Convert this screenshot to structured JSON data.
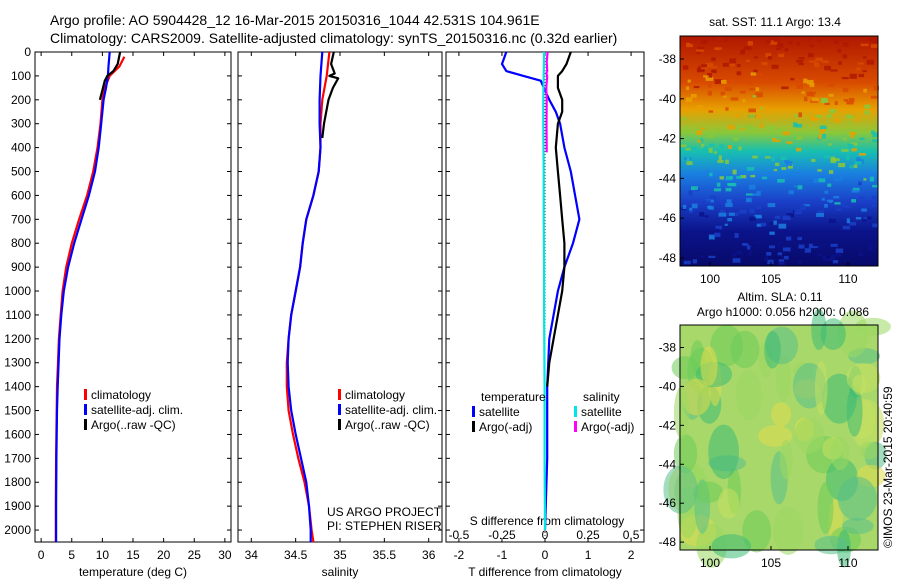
{
  "header": {
    "line1": "Argo profile: AO 5904428_12 16-Mar-2015 20150316_1044 42.531S 104.961E",
    "line2": "Climatology: CARS2009. Satellite-adjusted climatology: synTS_20150316.nc (0.32d earlier)"
  },
  "colors": {
    "climatology": "#ff0000",
    "satellite": "#0000ff",
    "argo": "#000000",
    "cyan": "#00e5e5",
    "magenta": "#ff00ff"
  },
  "chart_data": [
    {
      "type": "line",
      "xlabel": "temperature (deg C)",
      "xlim": [
        -1,
        31
      ],
      "xticks": [
        0,
        5,
        10,
        15,
        20,
        25,
        30
      ],
      "ylim": [
        0,
        2050
      ],
      "yticks": [
        0,
        100,
        200,
        300,
        400,
        500,
        600,
        700,
        800,
        900,
        1000,
        1100,
        1200,
        1300,
        1400,
        1500,
        1600,
        1700,
        1800,
        1900,
        2000
      ],
      "legend": [
        "climatology",
        "satellite-adj. clim.",
        "Argo(..raw -QC)"
      ],
      "series": [
        {
          "name": "climatology",
          "color": "#ff0000",
          "x": [
            13.6,
            12.8,
            11.2,
            10.4,
            10.0,
            9.7,
            9.2,
            8.5,
            7.5,
            6.2,
            5.0,
            4.1,
            3.5,
            3.2,
            2.9,
            2.75,
            2.6,
            2.55,
            2.5,
            2.45,
            2.4,
            2.4
          ],
          "y": [
            20,
            60,
            100,
            150,
            200,
            300,
            400,
            500,
            600,
            700,
            800,
            900,
            1000,
            1100,
            1200,
            1300,
            1400,
            1500,
            1600,
            1700,
            1900,
            2050
          ]
        },
        {
          "name": "satellite-adj. clim.",
          "color": "#0000ff",
          "x": [
            11.2,
            11.0,
            10.9,
            10.6,
            10.2,
            9.8,
            9.4,
            8.8,
            7.8,
            6.6,
            5.4,
            4.4,
            3.7,
            3.3,
            3.0,
            2.85,
            2.7,
            2.6,
            2.55,
            2.5,
            2.45,
            2.45
          ],
          "y": [
            0,
            60,
            100,
            150,
            200,
            300,
            400,
            500,
            600,
            700,
            800,
            900,
            1000,
            1100,
            1200,
            1300,
            1400,
            1500,
            1600,
            1700,
            1900,
            2050
          ]
        },
        {
          "name": "Argo(..raw -QC)",
          "color": "#000000",
          "x": [
            12.9,
            12.5,
            11.8,
            10.8,
            10.4,
            10.0,
            9.6
          ],
          "y": [
            0,
            50,
            80,
            100,
            120,
            160,
            200
          ]
        }
      ]
    },
    {
      "type": "line",
      "xlabel": "salinity",
      "xlim": [
        33.85,
        36.15
      ],
      "xticks": [
        34,
        34.5,
        35,
        35.5,
        36
      ],
      "ylim": [
        0,
        2050
      ],
      "legend": [
        "climatology",
        "satellite-adj. clim.",
        "Argo(..raw -QC)"
      ],
      "annotation": [
        "US ARGO PROJECT",
        "PI: STEPHEN RISER"
      ],
      "series": [
        {
          "name": "climatology",
          "color": "#ff0000",
          "x": [
            34.88,
            34.85,
            34.8,
            34.78,
            34.78,
            34.76,
            34.7,
            34.62,
            34.58,
            34.55,
            34.5,
            34.45,
            34.42,
            34.4,
            34.4,
            34.42,
            34.47,
            34.53,
            34.6,
            34.65,
            34.68,
            34.7
          ],
          "y": [
            0,
            100,
            200,
            300,
            400,
            500,
            600,
            700,
            800,
            900,
            1000,
            1100,
            1200,
            1300,
            1400,
            1500,
            1600,
            1700,
            1800,
            1900,
            2000,
            2050
          ]
        },
        {
          "name": "satellite-adj. clim.",
          "color": "#0000ff",
          "x": [
            34.8,
            34.78,
            34.77,
            34.77,
            34.78,
            34.76,
            34.7,
            34.62,
            34.58,
            34.55,
            34.5,
            34.45,
            34.42,
            34.41,
            34.42,
            34.45,
            34.5,
            34.56,
            34.62,
            34.65,
            34.67,
            34.67
          ],
          "y": [
            0,
            100,
            200,
            300,
            400,
            500,
            600,
            700,
            800,
            900,
            1000,
            1100,
            1200,
            1300,
            1400,
            1500,
            1600,
            1700,
            1800,
            1900,
            2000,
            2050
          ]
        },
        {
          "name": "Argo(..raw -QC)",
          "color": "#000000",
          "x": [
            34.93,
            34.9,
            34.94,
            34.88,
            34.98,
            34.92,
            34.87,
            34.84,
            34.82,
            34.8
          ],
          "y": [
            0,
            50,
            90,
            100,
            110,
            150,
            200,
            260,
            300,
            360
          ]
        }
      ]
    },
    {
      "type": "line",
      "xlabel": "T difference from climatology",
      "xlabel_top": "S difference from climatology",
      "xlim": [
        -2.3,
        2.3
      ],
      "xticks": [
        -2,
        -1,
        0,
        1,
        2
      ],
      "xticks_top": [
        -0.5,
        -0.25,
        0,
        0.25,
        0.5
      ],
      "ylim": [
        0,
        2050
      ],
      "legend_headers": [
        "temperature",
        "salinity"
      ],
      "legend": [
        "satellite",
        "Argo(-adj)",
        "satellite",
        "Argo(-adj)"
      ],
      "series": [
        {
          "name": "temperature satellite",
          "color": "#0000ff",
          "x": [
            -0.9,
            -1.0,
            -0.9,
            -0.5,
            -0.1,
            0.1,
            0.25,
            0.35,
            0.45,
            0.6,
            0.7,
            0.8,
            0.65,
            0.45,
            0.3,
            0.2,
            0.1,
            0.05,
            0.05,
            0.0
          ],
          "y": [
            0,
            50,
            80,
            100,
            120,
            200,
            250,
            300,
            400,
            500,
            600,
            700,
            800,
            900,
            1000,
            1100,
            1200,
            1400,
            1700,
            2000
          ]
        },
        {
          "name": "temperature Argo(-adj)",
          "color": "#000000",
          "x": [
            0.6,
            0.5,
            0.4,
            0.3,
            0.3,
            0.4,
            0.4,
            0.3,
            0.25,
            0.3,
            0.35,
            0.4,
            0.45,
            0.45,
            0.4,
            0.3,
            0.2,
            0.1,
            0.05
          ],
          "y": [
            0,
            50,
            80,
            100,
            150,
            200,
            250,
            300,
            400,
            500,
            600,
            700,
            800,
            900,
            1000,
            1100,
            1200,
            1300,
            1400
          ]
        },
        {
          "name": "salinity satellite",
          "color": "#00e5e5",
          "x": [
            -0.02,
            -0.03,
            -0.04,
            -0.04,
            -0.03,
            -0.03,
            -0.02,
            -0.02,
            -0.01,
            -0.01,
            0.0
          ],
          "y": [
            0,
            100,
            200,
            300,
            500,
            700,
            900,
            1100,
            1400,
            1700,
            2000
          ]
        },
        {
          "name": "salinity Argo(-adj)",
          "color": "#ff00ff",
          "x": [
            0.06,
            0.04,
            0.05,
            0.03,
            0.05,
            0.03,
            0.04,
            0.035,
            0.04
          ],
          "y": [
            0,
            40,
            80,
            90,
            100,
            150,
            200,
            300,
            420
          ]
        }
      ]
    },
    {
      "type": "heatmap",
      "title": "sat. SST: 11.1  Argo: 13.4",
      "xticks": [
        100,
        105,
        110
      ],
      "yticks": [
        -38,
        -40,
        -42,
        -44,
        -46,
        -48
      ]
    },
    {
      "type": "heatmap",
      "title": "Altim. SLA: 0.11",
      "subtitle": "Argo h1000: 0.056 h2000: 0.086",
      "xticks": [
        100,
        105,
        110
      ],
      "yticks": [
        -38,
        -40,
        -42,
        -44,
        -46,
        -48
      ]
    }
  ],
  "credit": "©IMOS 23-Mar-2015 20:40:59"
}
